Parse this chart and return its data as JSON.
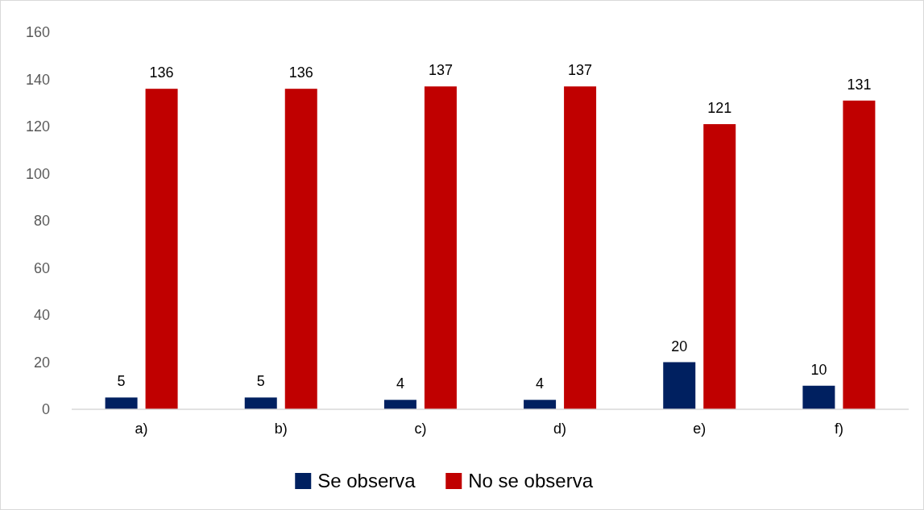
{
  "chart_data": {
    "type": "bar",
    "categories": [
      "a)",
      "b)",
      "c)",
      "d)",
      "e)",
      "f)"
    ],
    "series": [
      {
        "name": "Se observa",
        "color": "#002060",
        "values": [
          5,
          5,
          4,
          4,
          20,
          10
        ]
      },
      {
        "name": "No se observa",
        "color": "#c00000",
        "values": [
          136,
          136,
          137,
          137,
          121,
          131
        ]
      }
    ],
    "ylim": [
      0,
      160
    ],
    "yticks": [
      0,
      20,
      40,
      60,
      80,
      100,
      120,
      140,
      160
    ],
    "grid": false,
    "legend": "bottom",
    "data_labels": true
  }
}
